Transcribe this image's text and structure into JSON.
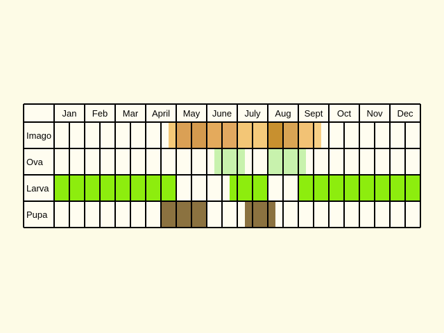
{
  "chart_data": {
    "type": "table",
    "months": [
      "Jan",
      "Feb",
      "Mar",
      "April",
      "May",
      "June",
      "July",
      "Aug",
      "Sept",
      "Oct",
      "Nov",
      "Dec"
    ],
    "stages": [
      "Imago",
      "Ova",
      "Larva",
      "Pupa"
    ],
    "colors": {
      "background": "#fdfbe6",
      "cell": "#fffdf0",
      "grid": "#000000",
      "imago": [
        "#f5c978",
        "#daa055",
        "#d49a4e",
        "#e4aa5c",
        "#e2a860",
        "#f3c676",
        "#f5ca7b",
        "#c8902f",
        "#d9a454",
        "#f2c275",
        "#f7cf85"
      ],
      "ova": "#c8f2ad",
      "larva": "#8ded0e",
      "pupa": "#8b7240"
    },
    "bars": {
      "Imago": [
        {
          "start_month": 4.75,
          "end_month": 5.0
        },
        {
          "start_month": 5.0,
          "end_month": 5.5
        },
        {
          "start_month": 5.5,
          "end_month": 6.0
        },
        {
          "start_month": 6.0,
          "end_month": 6.5
        },
        {
          "start_month": 6.5,
          "end_month": 7.0
        },
        {
          "start_month": 7.0,
          "end_month": 7.5
        },
        {
          "start_month": 7.5,
          "end_month": 8.0
        },
        {
          "start_month": 8.0,
          "end_month": 8.5
        },
        {
          "start_month": 8.5,
          "end_month": 9.0
        },
        {
          "start_month": 9.0,
          "end_month": 9.5
        },
        {
          "start_month": 9.5,
          "end_month": 9.75
        }
      ],
      "Ova": [
        {
          "start_month": 6.25,
          "end_month": 7.25
        },
        {
          "start_month": 8.0,
          "end_month": 9.25
        }
      ],
      "Larva": [
        {
          "start_month": 1.0,
          "end_month": 5.0
        },
        {
          "start_month": 6.75,
          "end_month": 8.0
        },
        {
          "start_month": 9.0,
          "end_month": 13.0
        }
      ],
      "Pupa": [
        {
          "start_month": 4.5,
          "end_month": 6.0
        },
        {
          "start_month": 7.25,
          "end_month": 8.25
        }
      ]
    }
  }
}
